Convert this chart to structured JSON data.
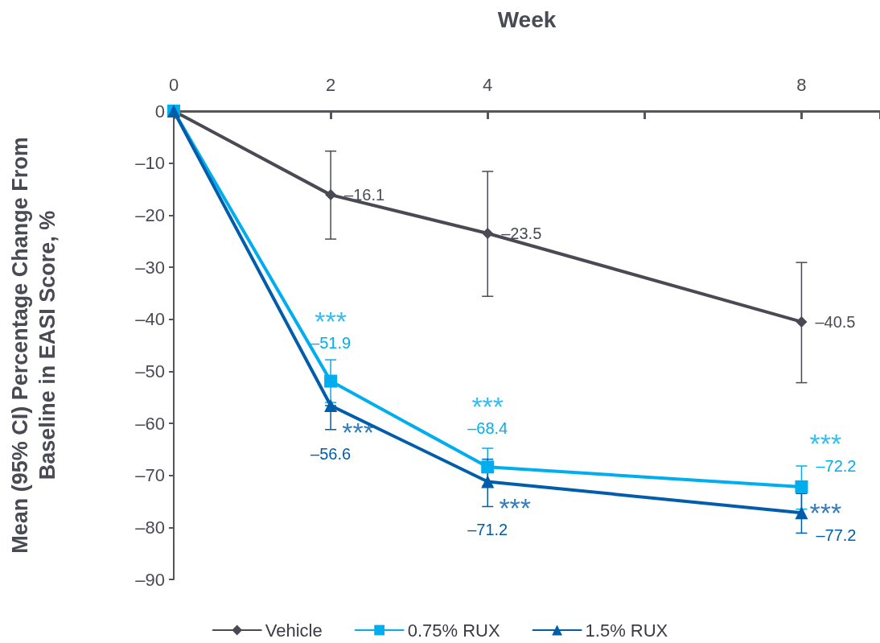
{
  "chart_data": {
    "type": "line",
    "xlabel": "Week",
    "ylabel": "Mean (95% CI) Percentage Change From\nBaseline in EASI Score, %",
    "x": [
      0,
      2,
      4,
      8
    ],
    "xlim": [
      0,
      9
    ],
    "xticks": [
      0,
      2,
      4,
      {
        "value": 6,
        "label": null
      },
      8
    ],
    "ylim": [
      -90,
      0
    ],
    "yticks": [
      0,
      {
        "value": -10,
        "label": "–10"
      },
      {
        "value": -20,
        "label": "–20"
      },
      {
        "value": -30,
        "label": "–30"
      },
      {
        "value": -40,
        "label": "–40"
      },
      {
        "value": -50,
        "label": "–50"
      },
      {
        "value": -60,
        "label": "–60"
      },
      {
        "value": -70,
        "label": "–70"
      },
      {
        "value": -80,
        "label": "–80"
      },
      {
        "value": -90,
        "label": "–90"
      }
    ],
    "grid": false,
    "legend": "bottom",
    "line_style": "solid",
    "series": [
      {
        "name": "Vehicle",
        "color": "#4a4a55",
        "marker": "diamond",
        "values": [
          0,
          -16.1,
          -23.5,
          -40.5
        ],
        "errors": [
          null,
          [
            -24.6,
            -7.7
          ],
          [
            -35.6,
            -11.6
          ],
          [
            -52.2,
            -29.1
          ]
        ],
        "value_labels": [
          null,
          "–16.1",
          "–23.5",
          "–40.5"
        ]
      },
      {
        "name": "0.75% RUX",
        "color": "#00aeef",
        "marker": "square",
        "values": [
          0,
          -51.9,
          -68.4,
          -72.2
        ],
        "errors": [
          null,
          [
            -56,
            -47.8
          ],
          [
            -72,
            -64.8
          ],
          [
            -76.5,
            -68.2
          ]
        ],
        "value_labels": [
          null,
          "–51.9",
          "–68.4",
          "–72.2"
        ]
      },
      {
        "name": "1.5% RUX",
        "color": "#005daa",
        "marker": "triangle",
        "values": [
          0,
          -56.6,
          -71.2,
          -77.2
        ],
        "errors": [
          null,
          [
            -61.2,
            -56.6
          ],
          [
            -76,
            -66.9
          ],
          [
            -81.1,
            -73.5
          ]
        ],
        "value_labels": [
          null,
          "–56.6",
          "–71.2",
          "–77.2"
        ]
      }
    ],
    "annotations": [
      "***",
      "***",
      "***",
      "***",
      "***",
      "***"
    ]
  }
}
